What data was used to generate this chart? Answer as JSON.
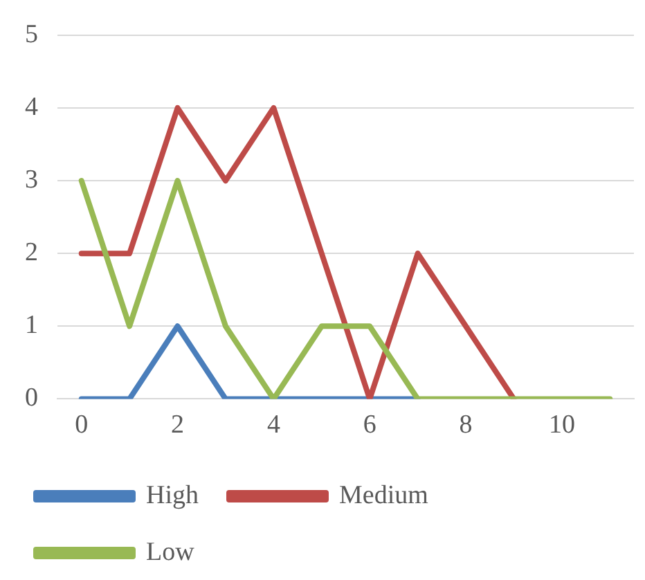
{
  "chart_data": {
    "type": "line",
    "categories": [
      "0",
      null,
      "2",
      null,
      "4",
      null,
      "6",
      null,
      "8",
      null,
      "10",
      null
    ],
    "series": [
      {
        "name": "High",
        "color": "#4a7ebb",
        "values": [
          0,
          0,
          1,
          0,
          0,
          0,
          0,
          0,
          null,
          null,
          null,
          null
        ]
      },
      {
        "name": "Medium",
        "color": "#be4b48",
        "values": [
          2,
          2,
          4,
          3,
          4,
          2,
          0,
          2,
          1,
          0,
          null,
          null
        ]
      },
      {
        "name": "Low",
        "color": "#98b954",
        "values": [
          3,
          1,
          3,
          1,
          0,
          1,
          1,
          0,
          0,
          0,
          0,
          0
        ]
      }
    ],
    "ylim": [
      0,
      5
    ],
    "yticks": [
      0,
      1,
      2,
      3,
      4,
      5
    ],
    "grid": "y",
    "legend": "bottom",
    "marker": "none",
    "line_style": "solid"
  }
}
